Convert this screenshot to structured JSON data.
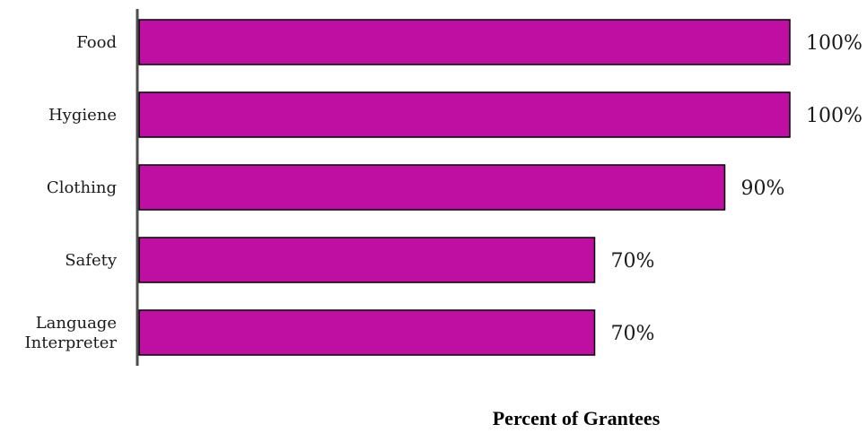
{
  "chart_data": {
    "type": "bar",
    "orientation": "horizontal",
    "categories": [
      "Food",
      "Hygiene",
      "Clothing",
      "Safety",
      "Language\nInterpreter"
    ],
    "values": [
      100,
      100,
      90,
      70,
      70
    ],
    "value_labels": [
      "100%",
      "100%",
      "90%",
      "70%",
      "70%"
    ],
    "xlabel": "Percent of Grantees",
    "ylabel": "",
    "xlim": [
      0,
      100
    ],
    "grid": false,
    "legend": "none",
    "bar_color": "#BF0FA3",
    "bar_edge_color": "#000000"
  }
}
